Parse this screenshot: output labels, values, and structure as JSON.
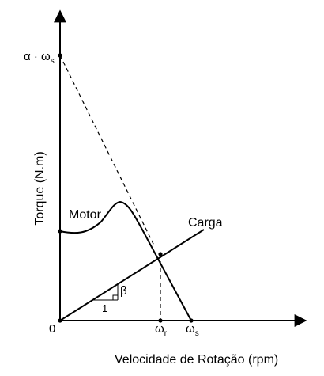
{
  "diagram": {
    "y_axis_label": "Torque (N.m)",
    "x_axis_label": "Velocidade de Rotação (rpm)",
    "origin_label": "0",
    "y_marker": {
      "prefix": "α · ω",
      "sub": "s"
    },
    "x_marker_r": {
      "base": "ω",
      "sub": "r"
    },
    "x_marker_s": {
      "base": "ω",
      "sub": "s"
    },
    "motor_label": "Motor",
    "load_label": "Carga",
    "slope_angle_label": "β",
    "slope_run_label": "1"
  }
}
